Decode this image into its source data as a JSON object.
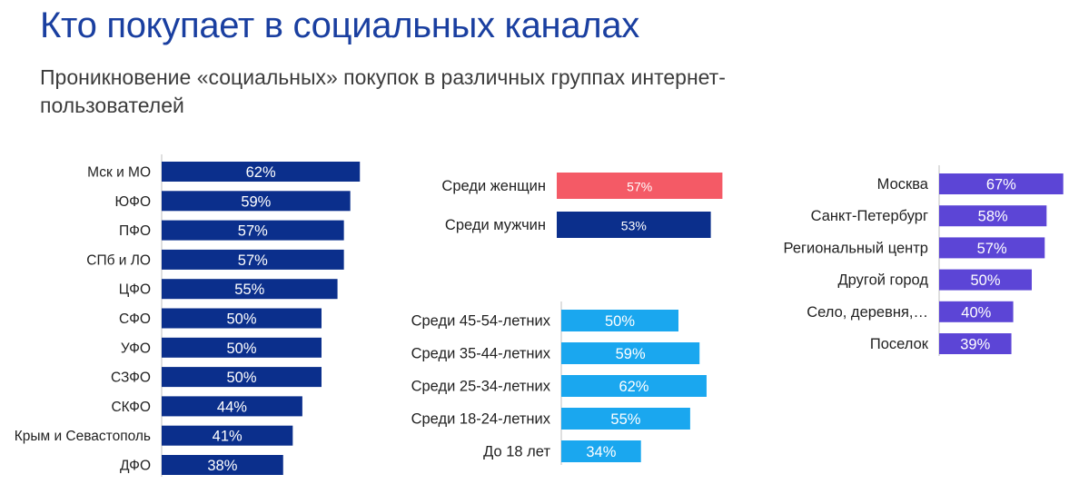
{
  "header": {
    "title": "Кто покупает в социальных каналах",
    "subtitle": "Проникновение «социальных» покупок в различных группах интернет-пользователей"
  },
  "colors": {
    "regions": "#0b2f8c",
    "women": "#f45a66",
    "men": "#0b2f8c",
    "age": "#1aa7ef",
    "settlement": "#5c45d6",
    "axis": "#bfbfbf"
  },
  "chart_data": [
    {
      "id": "regions",
      "type": "bar",
      "orientation": "horizontal",
      "categories": [
        "Мск и МО",
        "ЮФО",
        "ПФО",
        "СПб и ЛО",
        "ЦФО",
        "СФО",
        "УФО",
        "СЗФО",
        "СКФО",
        "Крым и Севастополь",
        "ДФО"
      ],
      "values": [
        62,
        59,
        57,
        57,
        55,
        50,
        50,
        50,
        44,
        41,
        38
      ],
      "labels": [
        "62%",
        "59%",
        "57%",
        "57%",
        "55%",
        "50%",
        "50%",
        "50%",
        "44%",
        "41%",
        "38%"
      ],
      "unit": "%"
    },
    {
      "id": "gender",
      "type": "bar",
      "orientation": "horizontal",
      "categories": [
        "Среди женщин",
        "Среди мужчин"
      ],
      "values": [
        57,
        53
      ],
      "labels": [
        "57%",
        "53%"
      ],
      "unit": "%"
    },
    {
      "id": "age",
      "type": "bar",
      "orientation": "horizontal",
      "categories": [
        "Среди 45-54-летних",
        "Среди 35-44-летних",
        "Среди 25-34-летних",
        "Среди 18-24-летних",
        "До 18 лет"
      ],
      "values": [
        50,
        59,
        62,
        55,
        34
      ],
      "labels": [
        "50%",
        "59%",
        "62%",
        "55%",
        "34%"
      ],
      "unit": "%"
    },
    {
      "id": "settlement",
      "type": "bar",
      "orientation": "horizontal",
      "categories": [
        "Москва",
        "Санкт-Петербург",
        "Региональный центр",
        "Другой город",
        "Село, деревня,…",
        "Поселок"
      ],
      "values": [
        67,
        58,
        57,
        50,
        40,
        39
      ],
      "labels": [
        "67%",
        "58%",
        "57%",
        "50%",
        "40%",
        "39%"
      ],
      "unit": "%"
    }
  ]
}
